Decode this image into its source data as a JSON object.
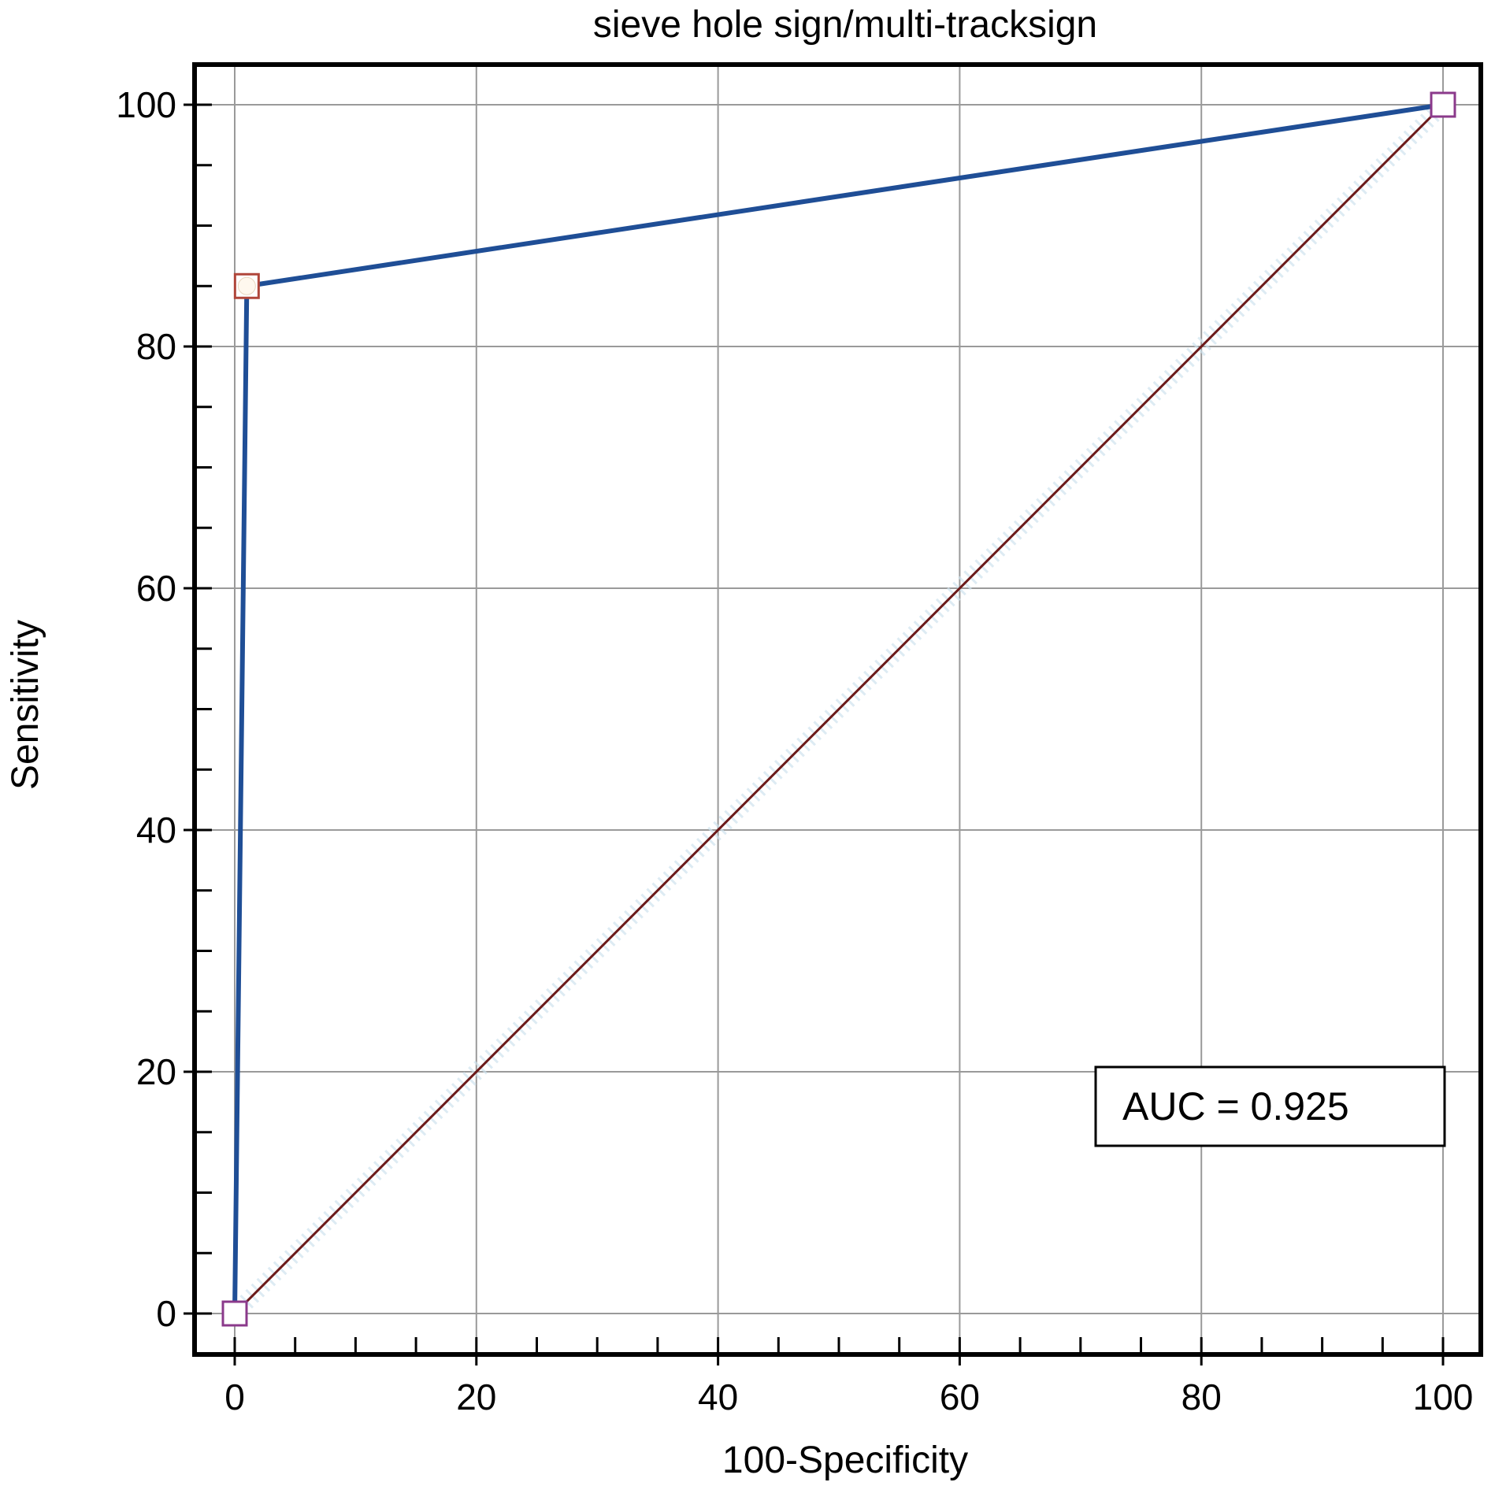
{
  "chart_data": {
    "type": "line",
    "title": "sieve hole sign/multi-tracksign",
    "xlabel": "100-Specificity",
    "ylabel": "Sensitivity",
    "xlim": [
      0,
      100
    ],
    "ylim": [
      0,
      100
    ],
    "xticks": [
      0,
      20,
      40,
      60,
      80,
      100
    ],
    "yticks": [
      0,
      20,
      40,
      60,
      80,
      100
    ],
    "grid": true,
    "series": [
      {
        "values": [
          {
            "x": 0,
            "y": 0
          },
          {
            "x": 1,
            "y": 85
          },
          {
            "x": 100,
            "y": 100
          }
        ],
        "color": "#1f4e96"
      },
      {
        "values": [
          {
            "x": 0,
            "y": 0
          },
          {
            "x": 100,
            "y": 100
          }
        ],
        "color": "#6b1a1a"
      }
    ],
    "annotations": [
      {
        "text": "AUC = 0.925"
      }
    ]
  },
  "colors": {
    "roc_curve": "#1f4e96",
    "reference_line": "#6b1a1a",
    "grid": "#9a9a9a",
    "frame": "#000000",
    "marker_fill": "#ffffff",
    "marker_start_end_stroke": "#8b3a8b",
    "marker_cut_stroke": "#b0463a"
  }
}
